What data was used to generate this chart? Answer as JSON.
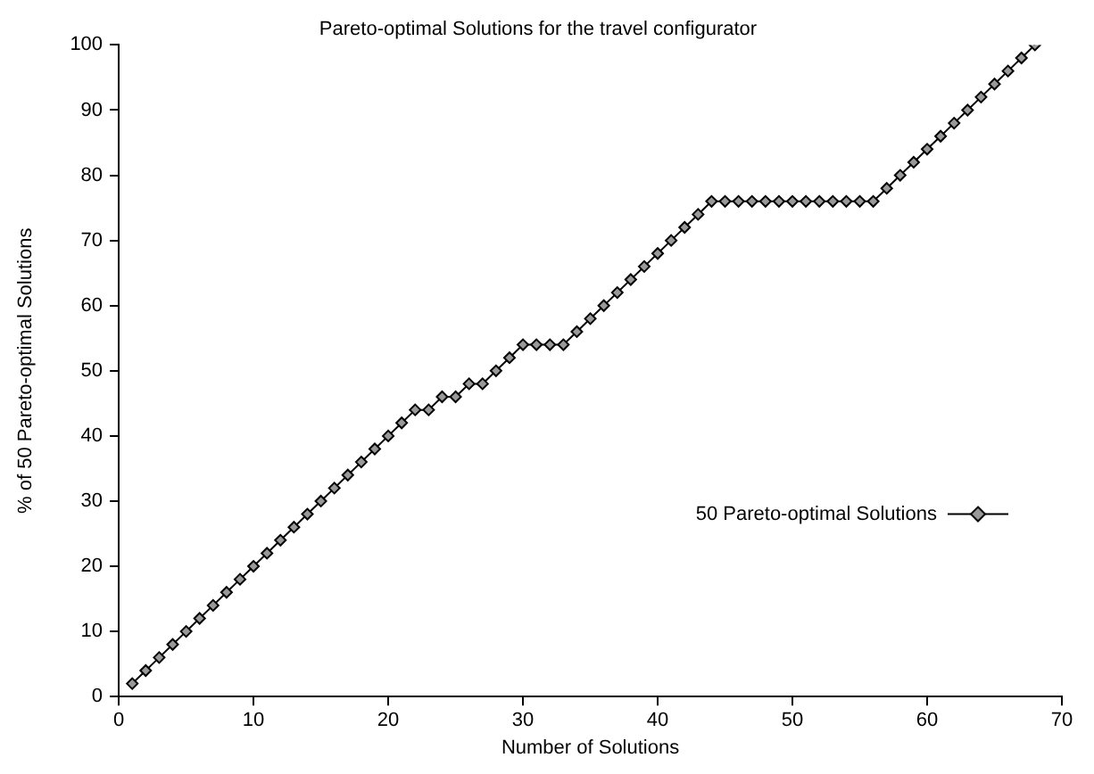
{
  "chart_data": {
    "type": "line",
    "title": "Pareto-optimal Solutions for the travel configurator",
    "xlabel": "Number of Solutions",
    "ylabel": "% of 50 Pareto-optimal Solutions",
    "x": [
      1,
      2,
      3,
      4,
      5,
      6,
      7,
      8,
      9,
      10,
      11,
      12,
      13,
      14,
      15,
      16,
      17,
      18,
      19,
      20,
      21,
      22,
      23,
      24,
      25,
      26,
      27,
      28,
      29,
      30,
      31,
      32,
      33,
      34,
      35,
      36,
      37,
      38,
      39,
      40,
      41,
      42,
      43,
      44,
      45,
      46,
      47,
      48,
      49,
      50,
      51,
      52,
      53,
      54,
      55,
      56,
      57,
      58,
      59,
      60,
      61,
      62,
      63,
      64,
      65,
      66,
      67,
      68
    ],
    "series": [
      {
        "name": "50 Pareto-optimal Solutions",
        "color": "#000000",
        "values": [
          2,
          4,
          6,
          8,
          10,
          12,
          14,
          16,
          18,
          20,
          22,
          24,
          26,
          28,
          30,
          32,
          34,
          36,
          38,
          40,
          42,
          44,
          44,
          46,
          46,
          48,
          48,
          50,
          52,
          54,
          54,
          54,
          54,
          56,
          58,
          60,
          62,
          64,
          66,
          68,
          70,
          72,
          74,
          76,
          76,
          76,
          76,
          76,
          76,
          76,
          76,
          76,
          76,
          76,
          76,
          76,
          78,
          80,
          82,
          84,
          86,
          88,
          90,
          92,
          94,
          96,
          98,
          100
        ]
      }
    ],
    "xlim": [
      0,
      70
    ],
    "xticks": [
      0,
      10,
      20,
      30,
      40,
      50,
      60,
      70
    ],
    "ylim": [
      0,
      100
    ],
    "yticks": [
      0,
      10,
      20,
      30,
      40,
      50,
      60,
      70,
      80,
      90,
      100
    ],
    "grid": false,
    "legend": "right",
    "marker": "diamond",
    "line_style": "solid"
  }
}
